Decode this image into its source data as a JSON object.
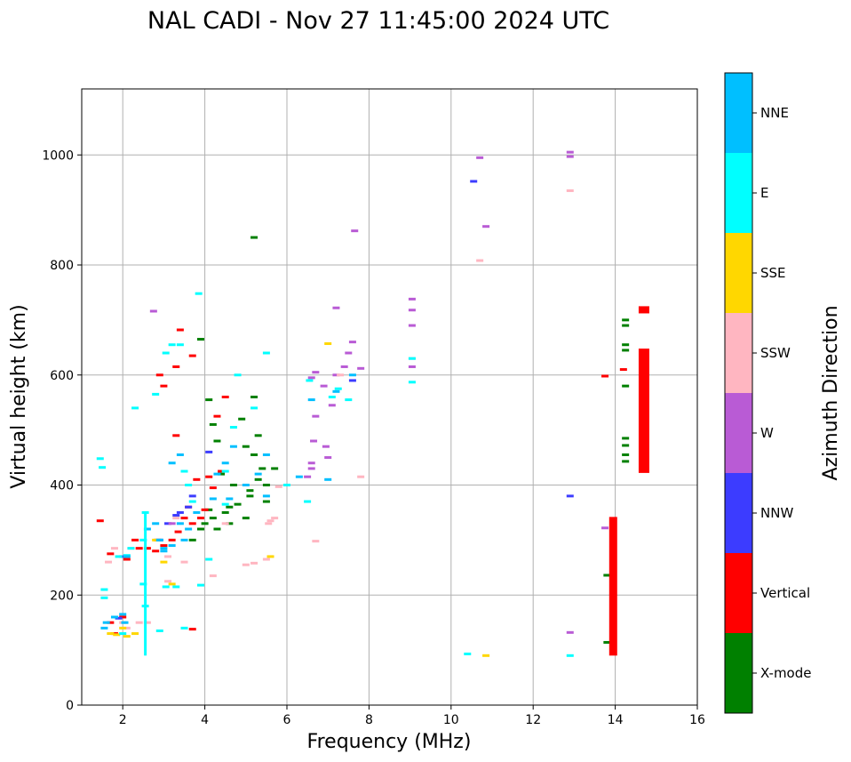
{
  "chart_data": {
    "type": "scatter",
    "title": "NAL CADI - Nov 27 11:45:00 2024 UTC",
    "xlabel": "Frequency (MHz)",
    "ylabel": "Virtual height (km)",
    "xlim": [
      1,
      16
    ],
    "ylim": [
      0,
      1120
    ],
    "xticks": [
      2,
      4,
      6,
      8,
      10,
      12,
      14,
      16
    ],
    "yticks": [
      0,
      200,
      400,
      600,
      800,
      1000
    ],
    "grid": true,
    "colorbar": {
      "label": "Azimuth Direction",
      "categories": [
        {
          "name": "X-mode",
          "color": "#008000"
        },
        {
          "name": "Vertical",
          "color": "#ff0000"
        },
        {
          "name": "NNW",
          "color": "#3c3cff"
        },
        {
          "name": "W",
          "color": "#b95bd5"
        },
        {
          "name": "SSW",
          "color": "#ffb6c1"
        },
        {
          "name": "SSE",
          "color": "#ffd700"
        },
        {
          "name": "E",
          "color": "#00ffff"
        },
        {
          "name": "NNE",
          "color": "#00bfff"
        }
      ]
    },
    "series": [
      {
        "name": "X-mode",
        "points": [
          [
            3.9,
            665
          ],
          [
            4.1,
            555
          ],
          [
            4.2,
            510
          ],
          [
            4.3,
            480
          ],
          [
            4.1,
            355
          ],
          [
            4.2,
            340
          ],
          [
            4.0,
            330
          ],
          [
            4.3,
            320
          ],
          [
            4.5,
            350
          ],
          [
            4.6,
            360
          ],
          [
            4.8,
            365
          ],
          [
            5.0,
            340
          ],
          [
            5.1,
            390
          ],
          [
            5.3,
            410
          ],
          [
            5.4,
            430
          ],
          [
            5.5,
            400
          ],
          [
            5.2,
            455
          ],
          [
            5.0,
            470
          ],
          [
            5.3,
            490
          ],
          [
            5.2,
            560
          ],
          [
            4.9,
            520
          ],
          [
            5.1,
            380
          ],
          [
            4.7,
            400
          ],
          [
            4.4,
            420
          ],
          [
            5.5,
            370
          ],
          [
            5.7,
            430
          ],
          [
            5.2,
            850
          ],
          [
            3.7,
            300
          ],
          [
            3.9,
            320
          ],
          [
            4.6,
            330
          ],
          [
            13.8,
            114
          ],
          [
            13.8,
            236
          ],
          [
            14.25,
            700
          ],
          [
            14.25,
            690
          ],
          [
            14.25,
            655
          ],
          [
            14.25,
            645
          ],
          [
            14.25,
            580
          ],
          [
            14.25,
            485
          ],
          [
            14.25,
            472
          ],
          [
            14.25,
            455
          ],
          [
            14.25,
            443
          ],
          [
            13.95,
            122
          ],
          [
            13.95,
            150
          ],
          [
            13.95,
            218
          ],
          [
            13.95,
            330
          ]
        ]
      },
      {
        "name": "Vertical",
        "points": [
          [
            1.45,
            335
          ],
          [
            1.7,
            275
          ],
          [
            2.1,
            265
          ],
          [
            2.3,
            300
          ],
          [
            2.4,
            285
          ],
          [
            2.6,
            285
          ],
          [
            2.8,
            280
          ],
          [
            2.85,
            300
          ],
          [
            3.0,
            290
          ],
          [
            3.2,
            300
          ],
          [
            3.35,
            315
          ],
          [
            3.5,
            340
          ],
          [
            3.7,
            330
          ],
          [
            3.9,
            340
          ],
          [
            4.0,
            355
          ],
          [
            4.2,
            395
          ],
          [
            4.1,
            415
          ],
          [
            3.8,
            410
          ],
          [
            2.9,
            600
          ],
          [
            3.0,
            580
          ],
          [
            3.3,
            615
          ],
          [
            3.7,
            635
          ],
          [
            4.3,
            525
          ],
          [
            4.5,
            560
          ],
          [
            3.3,
            490
          ],
          [
            3.6,
            360
          ],
          [
            2.0,
            160
          ],
          [
            1.7,
            150
          ],
          [
            1.8,
            130
          ],
          [
            3.7,
            138
          ],
          [
            3.4,
            682
          ],
          [
            4.4,
            425
          ],
          [
            13.75,
            598
          ],
          [
            14.2,
            610
          ],
          [
            13.95,
            245
          ],
          [
            13.95,
            225
          ]
        ]
      },
      {
        "name": "NNW",
        "points": [
          [
            2.0,
            270
          ],
          [
            3.1,
            330
          ],
          [
            3.4,
            350
          ],
          [
            3.7,
            380
          ],
          [
            4.1,
            460
          ],
          [
            3.3,
            345
          ],
          [
            2.9,
            300
          ],
          [
            3.6,
            360
          ],
          [
            1.9,
            158
          ],
          [
            10.55,
            952
          ],
          [
            12.9,
            380
          ],
          [
            7.6,
            590
          ]
        ]
      },
      {
        "name": "W",
        "points": [
          [
            2.75,
            716
          ],
          [
            6.5,
            415
          ],
          [
            6.6,
            430
          ],
          [
            6.6,
            440
          ],
          [
            6.65,
            480
          ],
          [
            6.7,
            525
          ],
          [
            6.6,
            595
          ],
          [
            6.7,
            605
          ],
          [
            6.9,
            580
          ],
          [
            6.95,
            470
          ],
          [
            7.0,
            450
          ],
          [
            7.2,
            600
          ],
          [
            7.1,
            545
          ],
          [
            7.2,
            722
          ],
          [
            7.4,
            615
          ],
          [
            7.5,
            640
          ],
          [
            7.6,
            660
          ],
          [
            7.65,
            862
          ],
          [
            7.8,
            612
          ],
          [
            9.05,
            738
          ],
          [
            9.05,
            718
          ],
          [
            9.05,
            690
          ],
          [
            9.05,
            615
          ],
          [
            10.7,
            995
          ],
          [
            10.85,
            870
          ],
          [
            12.9,
            1005
          ],
          [
            12.9,
            997
          ],
          [
            12.9,
            132
          ],
          [
            13.75,
            322
          ],
          [
            3.2,
            330
          ]
        ]
      },
      {
        "name": "SSW",
        "points": [
          [
            1.65,
            260
          ],
          [
            1.8,
            285
          ],
          [
            2.0,
            150
          ],
          [
            2.1,
            140
          ],
          [
            2.4,
            150
          ],
          [
            2.6,
            150
          ],
          [
            3.1,
            225
          ],
          [
            3.1,
            270
          ],
          [
            3.5,
            260
          ],
          [
            5.0,
            255
          ],
          [
            5.2,
            258
          ],
          [
            5.5,
            265
          ],
          [
            5.55,
            330
          ],
          [
            5.6,
            335
          ],
          [
            5.7,
            340
          ],
          [
            5.8,
            397
          ],
          [
            6.7,
            298
          ],
          [
            7.8,
            415
          ],
          [
            10.7,
            808
          ],
          [
            12.9,
            935
          ],
          [
            9.05,
            630
          ],
          [
            7.3,
            600
          ],
          [
            4.5,
            330
          ],
          [
            4.2,
            235
          ],
          [
            3.3,
            340
          ],
          [
            2.2,
            285
          ]
        ]
      },
      {
        "name": "SSE",
        "points": [
          [
            1.7,
            130
          ],
          [
            1.85,
            128
          ],
          [
            2.0,
            140
          ],
          [
            2.1,
            125
          ],
          [
            2.3,
            130
          ],
          [
            3.0,
            260
          ],
          [
            3.2,
            220
          ],
          [
            5.6,
            270
          ],
          [
            7.0,
            657
          ],
          [
            10.85,
            90
          ],
          [
            2.8,
            300
          ]
        ]
      },
      {
        "name": "E",
        "points": [
          [
            1.45,
            448
          ],
          [
            1.5,
            432
          ],
          [
            1.9,
            270
          ],
          [
            2.1,
            272
          ],
          [
            2.2,
            285
          ],
          [
            2.5,
            220
          ],
          [
            2.55,
            180
          ],
          [
            2.5,
            300
          ],
          [
            2.55,
            350
          ],
          [
            2.3,
            540
          ],
          [
            2.8,
            565
          ],
          [
            3.05,
            640
          ],
          [
            3.2,
            655
          ],
          [
            3.4,
            655
          ],
          [
            3.5,
            425
          ],
          [
            3.6,
            400
          ],
          [
            3.7,
            370
          ],
          [
            3.85,
            748
          ],
          [
            3.9,
            218
          ],
          [
            4.1,
            265
          ],
          [
            4.5,
            365
          ],
          [
            4.5,
            425
          ],
          [
            4.8,
            600
          ],
          [
            5.2,
            540
          ],
          [
            5.5,
            640
          ],
          [
            6.0,
            400
          ],
          [
            6.5,
            370
          ],
          [
            6.55,
            590
          ],
          [
            7.1,
            560
          ],
          [
            7.25,
            575
          ],
          [
            7.5,
            555
          ],
          [
            9.05,
            630
          ],
          [
            9.05,
            587
          ],
          [
            10.4,
            93
          ],
          [
            12.9,
            90
          ],
          [
            1.55,
            210
          ],
          [
            1.55,
            195
          ],
          [
            3.05,
            215
          ],
          [
            3.3,
            215
          ],
          [
            4.7,
            505
          ],
          [
            3.5,
            140
          ],
          [
            2.9,
            135
          ],
          [
            2.0,
            130
          ]
        ]
      },
      {
        "name": "NNE",
        "points": [
          [
            1.55,
            140
          ],
          [
            1.6,
            150
          ],
          [
            1.8,
            160
          ],
          [
            2.0,
            165
          ],
          [
            2.05,
            150
          ],
          [
            2.1,
            270
          ],
          [
            2.6,
            320
          ],
          [
            2.9,
            300
          ],
          [
            3.0,
            285
          ],
          [
            3.2,
            290
          ],
          [
            3.4,
            330
          ],
          [
            3.6,
            320
          ],
          [
            3.8,
            350
          ],
          [
            4.2,
            375
          ],
          [
            4.3,
            420
          ],
          [
            4.5,
            440
          ],
          [
            4.7,
            470
          ],
          [
            3.2,
            440
          ],
          [
            3.4,
            455
          ],
          [
            4.6,
            375
          ],
          [
            5.0,
            400
          ],
          [
            5.3,
            420
          ],
          [
            5.5,
            380
          ],
          [
            5.5,
            455
          ],
          [
            6.3,
            415
          ],
          [
            6.6,
            555
          ],
          [
            7.0,
            410
          ],
          [
            7.2,
            570
          ],
          [
            7.6,
            600
          ],
          [
            3.0,
            280
          ],
          [
            2.8,
            330
          ],
          [
            3.5,
            300
          ]
        ]
      }
    ],
    "vertical_segments": [
      {
        "series": "E",
        "x": 2.55,
        "y0": 90,
        "y1": 350
      },
      {
        "series": "Vertical",
        "x": 13.95,
        "y0": 90,
        "y1": 342
      },
      {
        "series": "Vertical",
        "x": 14.7,
        "y0": 422,
        "y1": 648
      },
      {
        "series": "Vertical",
        "x": 14.7,
        "y0": 712,
        "y1": 725
      }
    ]
  }
}
